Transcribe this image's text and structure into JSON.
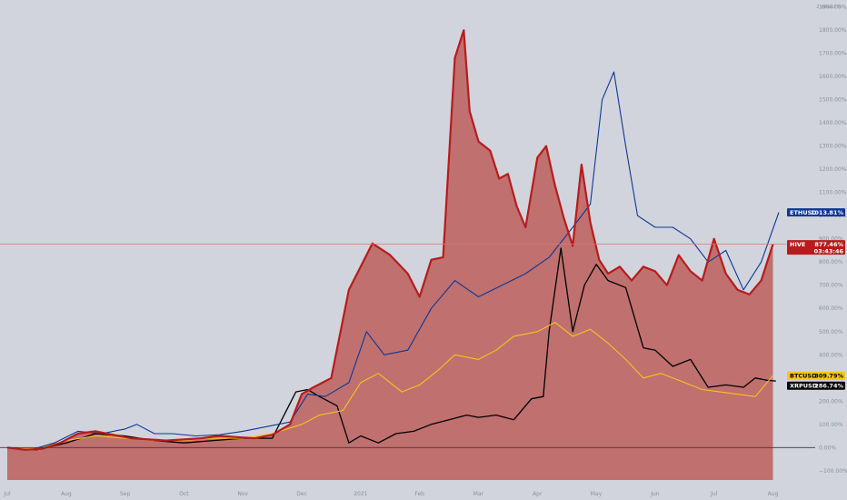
{
  "chart_data": {
    "type": "area",
    "corner_label": "2 désact %",
    "x_ticks": [
      "Jul",
      "Aug",
      "Sep",
      "Oct",
      "Nov",
      "Dec",
      "2021",
      "Feb",
      "Mar",
      "Apr",
      "May",
      "Jun",
      "Jul",
      "Aug"
    ],
    "y_ticks": [
      -100,
      0,
      100,
      200,
      300,
      400,
      500,
      600,
      700,
      800,
      900,
      1000,
      1100,
      1200,
      1300,
      1400,
      1500,
      1600,
      1700,
      1800,
      1900
    ],
    "y_tick_labels": [
      "−100.00%",
      "0.00%",
      "100.00%",
      "200.00%",
      "300.00%",
      "400.00%",
      "500.00%",
      "600.00%",
      "700.00%",
      "800.00%",
      "900.00%",
      "1000.00%",
      "1100.00%",
      "1200.00%",
      "1300.00%",
      "1400.00%",
      "1500.00%",
      "1600.00%",
      "1700.00%",
      "1800.00%",
      "1900.00%"
    ],
    "ylim": [
      -140,
      1930
    ],
    "xlim": [
      0,
      13.1
    ],
    "x_unit": "months since Jul",
    "grid": false,
    "reference_line": 877.46,
    "colors": {
      "HIVE": "#b71c1c",
      "HIVE_fill": "#c0706f",
      "ETHUSD": "#0d3796",
      "BTCUSD": "#f5c518",
      "XRPUSD": "#000000",
      "zero_line": "#3a3a3a",
      "ref_line": "#e57373"
    },
    "series": [
      {
        "name": "HIVE",
        "badge": "HIVE",
        "value_label": "877.46%",
        "countdown": "03:43:46",
        "badge_bg": "#b71c1c",
        "badge_fg": "#ffffff",
        "points": [
          [
            0,
            0
          ],
          [
            0.3,
            -10
          ],
          [
            0.6,
            -5
          ],
          [
            0.9,
            20
          ],
          [
            1.2,
            60
          ],
          [
            1.5,
            70
          ],
          [
            1.8,
            55
          ],
          [
            2.1,
            40
          ],
          [
            2.4,
            35
          ],
          [
            2.7,
            30
          ],
          [
            3.0,
            35
          ],
          [
            3.3,
            40
          ],
          [
            3.6,
            50
          ],
          [
            3.9,
            45
          ],
          [
            4.2,
            40
          ],
          [
            4.5,
            55
          ],
          [
            4.8,
            100
          ],
          [
            5.0,
            230
          ],
          [
            5.2,
            260
          ],
          [
            5.5,
            300
          ],
          [
            5.8,
            680
          ],
          [
            6.0,
            780
          ],
          [
            6.2,
            880
          ],
          [
            6.5,
            830
          ],
          [
            6.8,
            750
          ],
          [
            7.0,
            650
          ],
          [
            7.2,
            810
          ],
          [
            7.4,
            820
          ],
          [
            7.6,
            1680
          ],
          [
            7.75,
            1800
          ],
          [
            7.85,
            1450
          ],
          [
            8.0,
            1320
          ],
          [
            8.2,
            1280
          ],
          [
            8.35,
            1160
          ],
          [
            8.5,
            1180
          ],
          [
            8.65,
            1040
          ],
          [
            8.8,
            950
          ],
          [
            9.0,
            1250
          ],
          [
            9.15,
            1300
          ],
          [
            9.3,
            1130
          ],
          [
            9.45,
            990
          ],
          [
            9.6,
            870
          ],
          [
            9.75,
            1220
          ],
          [
            9.9,
            970
          ],
          [
            10.05,
            810
          ],
          [
            10.2,
            750
          ],
          [
            10.4,
            780
          ],
          [
            10.6,
            720
          ],
          [
            10.8,
            780
          ],
          [
            11.0,
            760
          ],
          [
            11.2,
            700
          ],
          [
            11.4,
            830
          ],
          [
            11.6,
            760
          ],
          [
            11.8,
            720
          ],
          [
            12.0,
            900
          ],
          [
            12.2,
            750
          ],
          [
            12.4,
            680
          ],
          [
            12.6,
            660
          ],
          [
            12.8,
            720
          ],
          [
            13.0,
            877
          ]
        ]
      },
      {
        "name": "ETHUSD",
        "badge": "ETHUSD",
        "value_label": "1013.81%",
        "badge_bg": "#0d3796",
        "badge_fg": "#ffffff",
        "points": [
          [
            0,
            0
          ],
          [
            0.4,
            -10
          ],
          [
            0.8,
            20
          ],
          [
            1.2,
            70
          ],
          [
            1.6,
            60
          ],
          [
            2.0,
            80
          ],
          [
            2.2,
            100
          ],
          [
            2.5,
            60
          ],
          [
            2.8,
            60
          ],
          [
            3.2,
            50
          ],
          [
            3.6,
            55
          ],
          [
            4.0,
            70
          ],
          [
            4.4,
            90
          ],
          [
            4.8,
            110
          ],
          [
            5.1,
            230
          ],
          [
            5.4,
            220
          ],
          [
            5.8,
            280
          ],
          [
            6.1,
            500
          ],
          [
            6.4,
            400
          ],
          [
            6.8,
            420
          ],
          [
            7.2,
            600
          ],
          [
            7.6,
            720
          ],
          [
            8.0,
            650
          ],
          [
            8.4,
            700
          ],
          [
            8.8,
            750
          ],
          [
            9.2,
            820
          ],
          [
            9.6,
            950
          ],
          [
            9.9,
            1050
          ],
          [
            10.1,
            1500
          ],
          [
            10.3,
            1620
          ],
          [
            10.5,
            1300
          ],
          [
            10.7,
            1000
          ],
          [
            11.0,
            950
          ],
          [
            11.3,
            950
          ],
          [
            11.6,
            900
          ],
          [
            11.9,
            800
          ],
          [
            12.2,
            850
          ],
          [
            12.5,
            680
          ],
          [
            12.8,
            800
          ],
          [
            13.1,
            1014
          ]
        ]
      },
      {
        "name": "BTCUSD",
        "badge": "BTCUSD",
        "value_label": "309.79%",
        "badge_bg": "#f5c518",
        "badge_fg": "#000000",
        "points": [
          [
            0,
            0
          ],
          [
            0.5,
            -5
          ],
          [
            1.0,
            30
          ],
          [
            1.5,
            50
          ],
          [
            2.0,
            40
          ],
          [
            2.5,
            30
          ],
          [
            3.0,
            30
          ],
          [
            3.5,
            40
          ],
          [
            4.0,
            40
          ],
          [
            4.5,
            60
          ],
          [
            5.0,
            100
          ],
          [
            5.3,
            140
          ],
          [
            5.7,
            160
          ],
          [
            6.0,
            280
          ],
          [
            6.3,
            320
          ],
          [
            6.7,
            240
          ],
          [
            7.0,
            270
          ],
          [
            7.3,
            330
          ],
          [
            7.6,
            400
          ],
          [
            8.0,
            380
          ],
          [
            8.3,
            420
          ],
          [
            8.6,
            480
          ],
          [
            9.0,
            500
          ],
          [
            9.3,
            540
          ],
          [
            9.6,
            480
          ],
          [
            9.9,
            510
          ],
          [
            10.2,
            450
          ],
          [
            10.5,
            380
          ],
          [
            10.8,
            300
          ],
          [
            11.1,
            320
          ],
          [
            11.4,
            290
          ],
          [
            11.8,
            250
          ],
          [
            12.1,
            240
          ],
          [
            12.4,
            230
          ],
          [
            12.7,
            220
          ],
          [
            13.0,
            310
          ]
        ]
      },
      {
        "name": "XRPUSD",
        "badge": "XRPUSD",
        "value_label": "286.74%",
        "badge_bg": "#000000",
        "badge_fg": "#ffffff",
        "points": [
          [
            0,
            0
          ],
          [
            0.5,
            -10
          ],
          [
            1.0,
            20
          ],
          [
            1.5,
            60
          ],
          [
            2.0,
            50
          ],
          [
            2.5,
            30
          ],
          [
            3.0,
            20
          ],
          [
            3.5,
            30
          ],
          [
            4.0,
            40
          ],
          [
            4.5,
            40
          ],
          [
            4.9,
            240
          ],
          [
            5.1,
            250
          ],
          [
            5.3,
            220
          ],
          [
            5.6,
            180
          ],
          [
            5.8,
            20
          ],
          [
            6.0,
            50
          ],
          [
            6.3,
            20
          ],
          [
            6.6,
            60
          ],
          [
            6.9,
            70
          ],
          [
            7.2,
            100
          ],
          [
            7.5,
            120
          ],
          [
            7.8,
            140
          ],
          [
            8.0,
            130
          ],
          [
            8.3,
            140
          ],
          [
            8.6,
            120
          ],
          [
            8.9,
            210
          ],
          [
            9.1,
            220
          ],
          [
            9.2,
            500
          ],
          [
            9.4,
            860
          ],
          [
            9.6,
            500
          ],
          [
            9.8,
            700
          ],
          [
            10.0,
            790
          ],
          [
            10.2,
            720
          ],
          [
            10.5,
            690
          ],
          [
            10.8,
            430
          ],
          [
            11.0,
            420
          ],
          [
            11.3,
            350
          ],
          [
            11.6,
            380
          ],
          [
            11.9,
            260
          ],
          [
            12.2,
            270
          ],
          [
            12.5,
            260
          ],
          [
            12.7,
            300
          ],
          [
            12.9,
            290
          ],
          [
            13.05,
            287
          ]
        ]
      }
    ]
  }
}
